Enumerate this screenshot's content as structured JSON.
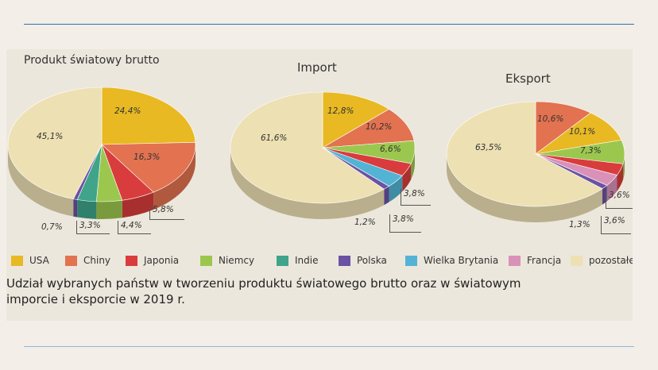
{
  "colors": {
    "USA": "#e8b923",
    "Chiny": "#e27250",
    "Japonia": "#d93c3c",
    "Niemcy": "#9cc74e",
    "Indie": "#3fa48a",
    "Polska": "#6b52a3",
    "Wielka Brytania": "#53b3d4",
    "Francja": "#d991b8",
    "pozostałe": "#ede0b3"
  },
  "legend": [
    "USA",
    "Chiny",
    "Japonia",
    "Niemcy",
    "Indie",
    "Polska",
    "Wielka Brytania",
    "Francja",
    "pozostałe"
  ],
  "caption": "Udział wybranych państw w tworzeniu produktu światowego brutto oraz w światowym imporcie i eksporcie w 2019 r.",
  "chart_data": [
    {
      "type": "pie",
      "title": "Produkt światowy brutto",
      "slices": [
        {
          "name": "USA",
          "value": 24.4,
          "label": "24,4%"
        },
        {
          "name": "Chiny",
          "value": 16.3,
          "label": "16,3%"
        },
        {
          "name": "Japonia",
          "value": 5.8,
          "label": "5,8%"
        },
        {
          "name": "Niemcy",
          "value": 4.4,
          "label": "4,4%"
        },
        {
          "name": "Indie",
          "value": 3.3,
          "label": "3,3%"
        },
        {
          "name": "Polska",
          "value": 0.7,
          "label": "0,7%"
        },
        {
          "name": "pozostałe",
          "value": 45.1,
          "label": "45,1%"
        }
      ]
    },
    {
      "type": "pie",
      "title": "Import",
      "slices": [
        {
          "name": "USA",
          "value": 12.8,
          "label": "12,8%"
        },
        {
          "name": "Chiny",
          "value": 10.2,
          "label": "10,2%"
        },
        {
          "name": "Niemcy",
          "value": 6.6,
          "label": "6,6%"
        },
        {
          "name": "Japonia",
          "value": 3.8,
          "label": "3,8%"
        },
        {
          "name": "Wielka Brytania",
          "value": 3.8,
          "label": "3,8%"
        },
        {
          "name": "Polska",
          "value": 1.2,
          "label": "1,2%"
        },
        {
          "name": "pozostałe",
          "value": 61.6,
          "label": "61,6%"
        }
      ]
    },
    {
      "type": "pie",
      "title": "Eksport",
      "slices": [
        {
          "name": "Chiny",
          "value": 10.6,
          "label": "10,6%"
        },
        {
          "name": "USA",
          "value": 10.1,
          "label": "10,1%"
        },
        {
          "name": "Niemcy",
          "value": 7.3,
          "label": "7,3%"
        },
        {
          "name": "Japonia",
          "value": 3.6,
          "label": "3,6%"
        },
        {
          "name": "Francja",
          "value": 3.6,
          "label": "3,6%"
        },
        {
          "name": "Polska",
          "value": 1.3,
          "label": "1,3%"
        },
        {
          "name": "pozostałe",
          "value": 63.5,
          "label": "63,5%"
        }
      ]
    }
  ]
}
